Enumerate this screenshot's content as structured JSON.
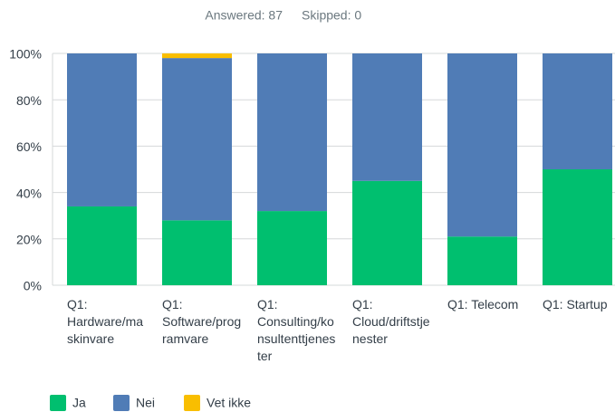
{
  "header": {
    "answered": "Answered: 87",
    "skipped": "Skipped: 0"
  },
  "chart_data": {
    "type": "stacked_bar",
    "categories": [
      "Q1: Hardware/maskinvare",
      "Q1: Software/programvare",
      "Q1: Consulting/konsultenttjenester",
      "Q1: Cloud/driftstjenester",
      "Q1: Telecom",
      "Q1: Startup"
    ],
    "series": [
      {
        "name": "Ja",
        "color": "#00bf6f",
        "values": [
          34,
          28,
          32,
          45,
          21,
          50
        ]
      },
      {
        "name": "Nei",
        "color": "#507cb6",
        "values": [
          66,
          70,
          68,
          55,
          79,
          50
        ]
      },
      {
        "name": "Vet ikke",
        "color": "#f9be00",
        "values": [
          0,
          2,
          0,
          0,
          0,
          0
        ]
      }
    ],
    "ylim": [
      0,
      100
    ],
    "yticks": [
      {
        "value": 0,
        "label": "0%"
      },
      {
        "value": 20,
        "label": "20%"
      },
      {
        "value": 40,
        "label": "40%"
      },
      {
        "value": 60,
        "label": "60%"
      },
      {
        "value": 80,
        "label": "80%"
      },
      {
        "value": 100,
        "label": "100%"
      }
    ],
    "grid": true
  }
}
